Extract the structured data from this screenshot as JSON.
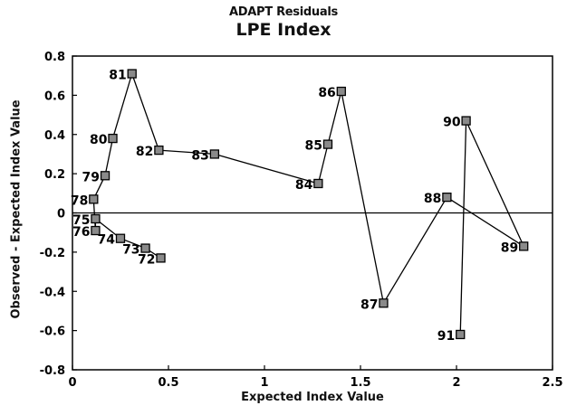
{
  "chart_data": {
    "type": "scatter",
    "supertitle": "ADAPT Residuals",
    "title": "LPE Index",
    "xlabel": "Expected Index Value",
    "ylabel": "Observed - Expected Index Value",
    "xlim": [
      0,
      2.5
    ],
    "ylim": [
      -0.8,
      0.8
    ],
    "x_ticks": [
      "0",
      "0.5",
      "1",
      "1.5",
      "2",
      "2.5"
    ],
    "y_ticks": [
      "0.8",
      "0.6",
      "0.4",
      "0.2",
      "0",
      "-0.2",
      "-0.4",
      "-0.6",
      "-0.8"
    ],
    "reference_line_y": 0,
    "marker": "square",
    "connected": true,
    "grid": false,
    "points": [
      {
        "label": "72",
        "x": 0.46,
        "y": -0.23
      },
      {
        "label": "73",
        "x": 0.38,
        "y": -0.18
      },
      {
        "label": "74",
        "x": 0.25,
        "y": -0.13
      },
      {
        "label": "75",
        "x": 0.12,
        "y": -0.03
      },
      {
        "label": "76",
        "x": 0.12,
        "y": -0.09
      },
      {
        "label": "78",
        "x": 0.11,
        "y": 0.07
      },
      {
        "label": "79",
        "x": 0.17,
        "y": 0.19
      },
      {
        "label": "80",
        "x": 0.21,
        "y": 0.38
      },
      {
        "label": "81",
        "x": 0.31,
        "y": 0.71
      },
      {
        "label": "82",
        "x": 0.45,
        "y": 0.32
      },
      {
        "label": "83",
        "x": 0.74,
        "y": 0.3
      },
      {
        "label": "84",
        "x": 1.28,
        "y": 0.15
      },
      {
        "label": "85",
        "x": 1.33,
        "y": 0.35
      },
      {
        "label": "86",
        "x": 1.4,
        "y": 0.62
      },
      {
        "label": "87",
        "x": 1.62,
        "y": -0.46
      },
      {
        "label": "88",
        "x": 1.95,
        "y": 0.08
      },
      {
        "label": "89",
        "x": 2.35,
        "y": -0.17
      },
      {
        "label": "90",
        "x": 2.05,
        "y": 0.47
      },
      {
        "label": "91",
        "x": 2.02,
        "y": -0.62
      }
    ]
  }
}
